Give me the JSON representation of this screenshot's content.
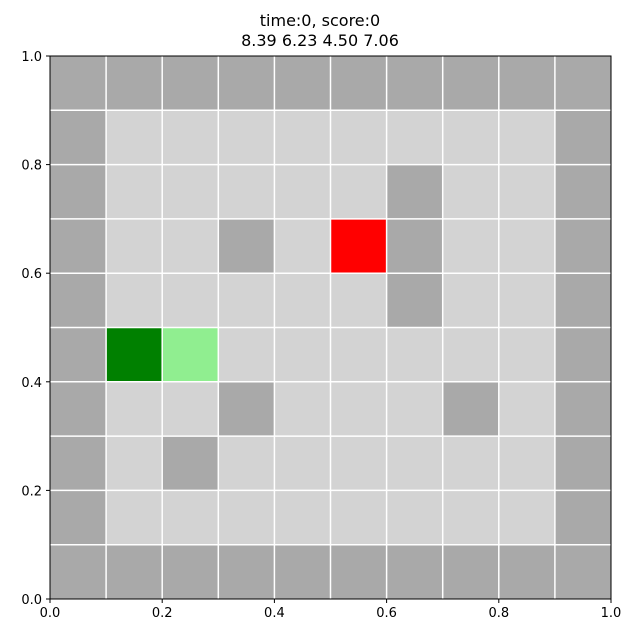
{
  "header": {
    "status_line": "time:0, score:0",
    "values_line": "8.39 6.23 4.50 7.06"
  },
  "axes": {
    "x_ticks": [
      "0.0",
      "0.2",
      "0.4",
      "0.6",
      "0.8",
      "1.0"
    ],
    "y_ticks": [
      "0.0",
      "0.2",
      "0.4",
      "0.6",
      "0.8",
      "1.0"
    ]
  },
  "grid": {
    "cols": 10,
    "rows": 10,
    "colors": {
      "wall": "#a9a9a9",
      "floor": "#d3d3d3",
      "agent": "#008000",
      "trail": "#90ee90",
      "goal": "#ff0000",
      "gridline": "#ffffff"
    },
    "legend_note": "row 0 = top; W=wall, .=floor, A=agent, T=trail, G=goal",
    "cells": [
      "WWWWWWWWWW",
      "W........W",
      "W.....W..W",
      "W..W.GW..W",
      "W.....W..W",
      "WAT......W",
      "W..W...W.W",
      "W.W......W",
      "W........W",
      "WWWWWWWWWW"
    ]
  }
}
